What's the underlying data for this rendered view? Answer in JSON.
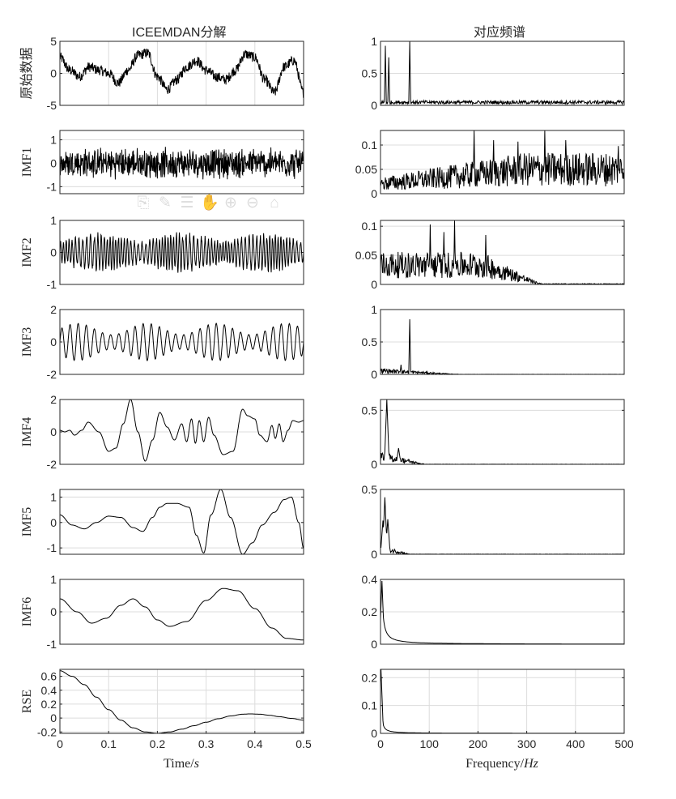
{
  "figure": {
    "left_title": "ICEEMDAN分解",
    "right_title": "对应频谱",
    "left_xlabel_main": "Time/",
    "left_xlabel_italic": "s",
    "right_xlabel_main": "Frequency/",
    "right_xlabel_italic": "Hz",
    "colors": {
      "line": "#000000",
      "axis": "#262626",
      "grid": "#dcdcdc",
      "background": "#ffffff"
    }
  },
  "toolbar": {
    "icons": [
      {
        "name": "export-icon",
        "glyph": "⎘"
      },
      {
        "name": "brush-icon",
        "glyph": "✎"
      },
      {
        "name": "datatip-icon",
        "glyph": "☰"
      },
      {
        "name": "pan-hand-icon",
        "glyph": "✋"
      },
      {
        "name": "zoom-in-icon",
        "glyph": "⊕"
      },
      {
        "name": "zoom-out-icon",
        "glyph": "⊖"
      },
      {
        "name": "home-icon",
        "glyph": "⌂"
      }
    ]
  },
  "chart_data": [
    {
      "panel": "time-0",
      "type": "line",
      "title": "ICEEMDAN分解",
      "ylabel": "原始数据",
      "xlim": [
        0,
        0.5
      ],
      "ylim": [
        -5,
        5
      ],
      "yticks": [
        -5,
        0,
        5
      ],
      "xticks": [
        0,
        0.1,
        0.2,
        0.3,
        0.4,
        0.5
      ],
      "grid": true,
      "xlabel": "",
      "x": [
        0,
        0.02,
        0.04,
        0.06,
        0.08,
        0.1,
        0.12,
        0.14,
        0.16,
        0.18,
        0.2,
        0.22,
        0.24,
        0.26,
        0.28,
        0.3,
        0.32,
        0.34,
        0.36,
        0.38,
        0.4,
        0.42,
        0.44,
        0.46,
        0.48,
        0.5
      ],
      "values": [
        2.5,
        0.5,
        -0.5,
        1.0,
        0.5,
        0.0,
        -1.5,
        0.5,
        2.8,
        3.2,
        -0.5,
        -2.5,
        -1.0,
        1.0,
        2.0,
        0.5,
        -0.5,
        -1.0,
        0.5,
        3.0,
        2.5,
        -1.0,
        -3.0,
        1.0,
        2.0,
        -3.0
      ]
    },
    {
      "panel": "time-1",
      "type": "line",
      "ylabel": "IMF1",
      "xlim": [
        0,
        0.5
      ],
      "ylim": [
        -1.3,
        1.4
      ],
      "yticks": [
        -1,
        0,
        1
      ],
      "grid": true,
      "xlabel": "",
      "description": "high-frequency noise, amplitude ~0.5-1.3",
      "amplitude": 0.6,
      "freq_hz": 350
    },
    {
      "panel": "time-2",
      "type": "line",
      "ylabel": "IMF2",
      "xlim": [
        0,
        0.5
      ],
      "ylim": [
        -1,
        1
      ],
      "yticks": [
        -1,
        0,
        1
      ],
      "grid": true,
      "xlabel": "",
      "amplitude": 0.4,
      "freq_hz": 150
    },
    {
      "panel": "time-3",
      "type": "line",
      "ylabel": "IMF3",
      "xlim": [
        0,
        0.5
      ],
      "ylim": [
        -2,
        2
      ],
      "yticks": [
        -2,
        0,
        2
      ],
      "grid": true,
      "xlabel": "",
      "amplitude": 1.0,
      "freq_hz": 60
    },
    {
      "panel": "time-4",
      "type": "line",
      "ylabel": "IMF4",
      "xlim": [
        0,
        0.5
      ],
      "ylim": [
        -2,
        2
      ],
      "yticks": [
        -2,
        0,
        2
      ],
      "grid": true,
      "xlabel": "",
      "x": [
        0,
        0.01,
        0.02,
        0.03,
        0.045,
        0.058,
        0.08,
        0.1,
        0.115,
        0.13,
        0.145,
        0.16,
        0.175,
        0.19,
        0.205,
        0.22,
        0.235,
        0.25,
        0.26,
        0.27,
        0.278,
        0.286,
        0.295,
        0.305,
        0.316,
        0.335,
        0.355,
        0.375,
        0.385,
        0.4,
        0.41,
        0.425,
        0.435,
        0.442,
        0.45,
        0.458,
        0.468,
        0.478,
        0.49,
        0.5
      ],
      "values": [
        0.1,
        0,
        0.1,
        -0.2,
        0.1,
        0.6,
        0,
        -1.2,
        -1.0,
        0.5,
        2.0,
        0.0,
        -1.8,
        -0.5,
        1.2,
        0.3,
        -0.5,
        0.5,
        -0.6,
        0.8,
        -0.7,
        0.7,
        -0.6,
        0.9,
        -0.2,
        -1.4,
        -1.2,
        1.4,
        1.0,
        0.8,
        -0.2,
        -0.6,
        0.4,
        -0.4,
        0.5,
        -0.6,
        0.1,
        0.7,
        0.6,
        0.7
      ]
    },
    {
      "panel": "time-5",
      "type": "line",
      "ylabel": "IMF5",
      "xlim": [
        0,
        0.5
      ],
      "ylim": [
        -1.25,
        1.3
      ],
      "yticks": [
        -1,
        0,
        1
      ],
      "grid": true,
      "xlabel": "",
      "x": [
        0,
        0.025,
        0.05,
        0.075,
        0.1,
        0.125,
        0.15,
        0.17,
        0.19,
        0.205,
        0.22,
        0.24,
        0.265,
        0.28,
        0.295,
        0.31,
        0.33,
        0.35,
        0.375,
        0.395,
        0.415,
        0.44,
        0.46,
        0.475,
        0.49,
        0.5
      ],
      "values": [
        0.3,
        -0.1,
        -0.25,
        0.0,
        0.25,
        0.2,
        -0.2,
        -0.35,
        0.2,
        0.6,
        0.75,
        0.75,
        0.6,
        -0.5,
        -1.2,
        0.3,
        1.3,
        0.2,
        -1.25,
        -0.8,
        -0.1,
        0.4,
        0.9,
        1.0,
        0.0,
        -1.0
      ]
    },
    {
      "panel": "time-6",
      "type": "line",
      "ylabel": "IMF6",
      "xlim": [
        0,
        0.5
      ],
      "ylim": [
        -1,
        1
      ],
      "yticks": [
        -1,
        0,
        1
      ],
      "grid": true,
      "xlabel": "",
      "x": [
        0,
        0.035,
        0.065,
        0.095,
        0.125,
        0.15,
        0.175,
        0.2,
        0.225,
        0.26,
        0.3,
        0.335,
        0.365,
        0.4,
        0.435,
        0.465,
        0.5
      ],
      "values": [
        0.4,
        0.0,
        -0.35,
        -0.2,
        0.2,
        0.4,
        0.15,
        -0.25,
        -0.45,
        -0.3,
        0.35,
        0.72,
        0.65,
        0.1,
        -0.5,
        -0.82,
        -0.87
      ]
    },
    {
      "panel": "time-7",
      "type": "line",
      "ylabel": "RSE",
      "xlabel": "Time/s",
      "xlim": [
        0,
        0.5
      ],
      "ylim": [
        -0.22,
        0.7
      ],
      "yticks": [
        -0.2,
        0,
        0.2,
        0.4,
        0.6
      ],
      "xticks": [
        0,
        0.1,
        0.2,
        0.3,
        0.4,
        0.5
      ],
      "xticklabels": [
        "0",
        "0.1",
        "0.2",
        "0.3",
        "0.4",
        "0.5"
      ],
      "grid": true,
      "x": [
        0,
        0.025,
        0.05,
        0.075,
        0.1,
        0.125,
        0.15,
        0.175,
        0.2,
        0.225,
        0.25,
        0.275,
        0.3,
        0.325,
        0.35,
        0.375,
        0.39,
        0.41,
        0.43,
        0.45,
        0.475,
        0.5
      ],
      "values": [
        0.68,
        0.6,
        0.48,
        0.3,
        0.12,
        -0.03,
        -0.14,
        -0.2,
        -0.22,
        -0.2,
        -0.16,
        -0.11,
        -0.06,
        -0.01,
        0.03,
        0.055,
        0.06,
        0.055,
        0.04,
        0.02,
        -0.005,
        -0.03
      ]
    },
    {
      "panel": "freq-0",
      "type": "line",
      "title": "对应频谱",
      "xlim": [
        0,
        500
      ],
      "ylim": [
        0,
        1
      ],
      "yticks": [
        0,
        0.5,
        1
      ],
      "grid": true,
      "xlabel": "",
      "peaks": [
        {
          "x": 10,
          "y": 0.93
        },
        {
          "x": 17,
          "y": 0.75
        },
        {
          "x": 60,
          "y": 1.0
        }
      ],
      "baseline": 0.05
    },
    {
      "panel": "freq-1",
      "type": "line",
      "xlim": [
        0,
        500
      ],
      "ylim": [
        0,
        0.13
      ],
      "yticks": [
        0,
        0.05,
        0.1
      ],
      "grid": true,
      "xlabel": "",
      "peaks": [
        {
          "x": 192,
          "y": 0.13
        },
        {
          "x": 232,
          "y": 0.11
        },
        {
          "x": 282,
          "y": 0.107
        },
        {
          "x": 337,
          "y": 0.13
        },
        {
          "x": 380,
          "y": 0.11
        },
        {
          "x": 488,
          "y": 0.098
        }
      ],
      "baseline_low": 0.02,
      "baseline_high": 0.05
    },
    {
      "panel": "freq-2",
      "type": "line",
      "xlim": [
        0,
        500
      ],
      "ylim": [
        0,
        0.11
      ],
      "yticks": [
        0,
        0.05,
        0.1
      ],
      "grid": true,
      "xlabel": "",
      "peaks": [
        {
          "x": 102,
          "y": 0.103
        },
        {
          "x": 130,
          "y": 0.09
        },
        {
          "x": 152,
          "y": 0.11
        },
        {
          "x": 216,
          "y": 0.085
        }
      ],
      "cutoff_hz": 330
    },
    {
      "panel": "freq-3",
      "type": "line",
      "xlim": [
        0,
        500
      ],
      "ylim": [
        0,
        1
      ],
      "yticks": [
        0,
        0.5,
        1
      ],
      "grid": true,
      "xlabel": "",
      "peaks": [
        {
          "x": 60,
          "y": 0.85
        },
        {
          "x": 42,
          "y": 0.15
        }
      ],
      "cutoff_hz": 160
    },
    {
      "panel": "freq-4",
      "type": "line",
      "xlim": [
        0,
        500
      ],
      "ylim": [
        0,
        0.6
      ],
      "yticks": [
        0,
        0.5
      ],
      "grid": true,
      "xlabel": "",
      "peaks": [
        {
          "x": 13,
          "y": 0.6
        },
        {
          "x": 37,
          "y": 0.15
        }
      ],
      "cutoff_hz": 90
    },
    {
      "panel": "freq-5",
      "type": "line",
      "xlim": [
        0,
        500
      ],
      "ylim": [
        0,
        0.5
      ],
      "yticks": [
        0,
        0.5
      ],
      "grid": false,
      "xlabel": "",
      "peaks": [
        {
          "x": 9,
          "y": 0.44
        },
        {
          "x": 15,
          "y": 0.27
        },
        {
          "x": 5,
          "y": 0.26
        }
      ],
      "cutoff_hz": 60
    },
    {
      "panel": "freq-6",
      "type": "line",
      "xlim": [
        0,
        500
      ],
      "ylim": [
        0,
        0.4
      ],
      "yticks": [
        0,
        0.2,
        0.4
      ],
      "grid": true,
      "xlabel": "",
      "peaks": [
        {
          "x": 3,
          "y": 0.39
        }
      ],
      "decay": true
    },
    {
      "panel": "freq-7",
      "type": "line",
      "xlabel": "Frequency/Hz",
      "xlim": [
        0,
        500
      ],
      "ylim": [
        0,
        0.23
      ],
      "yticks": [
        0,
        0.1,
        0.2
      ],
      "xticks": [
        0,
        100,
        200,
        300,
        400,
        500
      ],
      "xticklabels": [
        "0",
        "100",
        "200",
        "300",
        "400",
        "500"
      ],
      "grid": true,
      "peaks": [
        {
          "x": 1,
          "y": 0.23
        }
      ],
      "decay": true
    }
  ]
}
